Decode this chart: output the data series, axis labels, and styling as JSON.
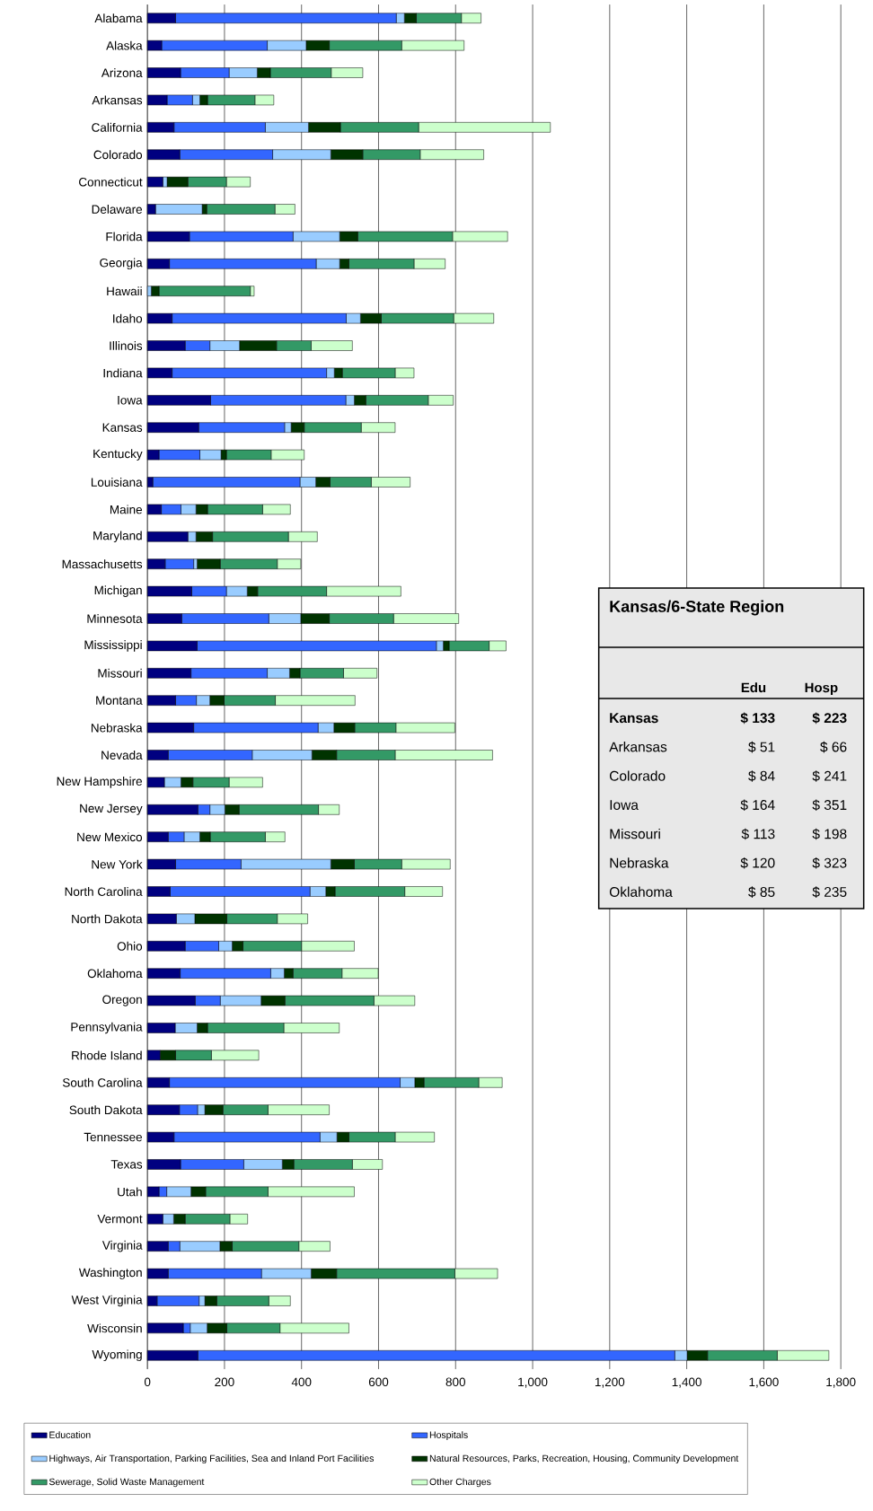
{
  "chart_data": [
    {
      "type": "bar",
      "orientation": "horizontal",
      "stacked": true,
      "categories": [
        "Alabama",
        "Alaska",
        "Arizona",
        "Arkansas",
        "California",
        "Colorado",
        "Connecticut",
        "Delaware",
        "Florida",
        "Georgia",
        "Hawaii",
        "Idaho",
        "Illinois",
        "Indiana",
        "Iowa",
        "Kansas",
        "Kentucky",
        "Louisiana",
        "Maine",
        "Maryland",
        "Massachusetts",
        "Michigan",
        "Minnesota",
        "Mississippi",
        "Missouri",
        "Montana",
        "Nebraska",
        "Nevada",
        "New Hampshire",
        "New Jersey",
        "New Mexico",
        "New York",
        "North Carolina",
        "North Dakota",
        "Ohio",
        "Oklahoma",
        "Oregon",
        "Pennsylvania",
        "Rhode Island",
        "South Carolina",
        "South Dakota",
        "Tennessee",
        "Texas",
        "Utah",
        "Vermont",
        "Virginia",
        "Washington",
        "West Virginia",
        "Wisconsin",
        "Wyoming"
      ],
      "series": [
        {
          "name": "Education",
          "color": "#000080",
          "values": [
            73,
            37,
            86,
            51,
            69,
            84,
            40,
            21,
            109,
            57,
            0,
            64,
            98,
            64,
            164,
            133,
            30,
            14,
            36,
            105,
            46,
            115,
            89,
            129,
            113,
            73,
            120,
            54,
            44,
            131,
            54,
            73,
            59,
            75,
            98,
            85,
            124,
            72,
            33,
            57,
            83,
            69,
            86,
            30,
            40,
            54,
            54,
            25,
            93,
            131
          ]
        },
        {
          "name": "Hospitals",
          "color": "#3366ff",
          "values": [
            573,
            274,
            126,
            66,
            237,
            241,
            0,
            0,
            269,
            381,
            0,
            452,
            64,
            401,
            351,
            223,
            106,
            382,
            51,
            0,
            74,
            90,
            226,
            621,
            198,
            54,
            323,
            218,
            0,
            31,
            41,
            170,
            363,
            0,
            87,
            235,
            65,
            0,
            0,
            599,
            47,
            379,
            164,
            20,
            0,
            30,
            242,
            109,
            18,
            1238
          ]
        },
        {
          "name": "Highways, Air Transportation, Parking Facilities, Sea and Inland Port Facilities",
          "color": "#99ccff",
          "values": [
            21,
            101,
            73,
            19,
            112,
            151,
            11,
            121,
            121,
            61,
            10,
            37,
            77,
            20,
            22,
            17,
            55,
            41,
            39,
            21,
            9,
            54,
            83,
            18,
            58,
            35,
            41,
            155,
            43,
            39,
            41,
            233,
            41,
            48,
            35,
            35,
            106,
            57,
            0,
            38,
            19,
            44,
            100,
            63,
            28,
            104,
            129,
            15,
            44,
            32
          ]
        },
        {
          "name": "Natural Resources, Parks, Recreation, Housing, Community Development",
          "color": "#003300",
          "values": [
            31,
            60,
            34,
            20,
            83,
            83,
            54,
            12,
            47,
            24,
            20,
            54,
            96,
            21,
            30,
            34,
            14,
            37,
            30,
            43,
            60,
            27,
            74,
            15,
            27,
            37,
            54,
            64,
            31,
            37,
            27,
            61,
            24,
            83,
            28,
            23,
            62,
            27,
            40,
            24,
            47,
            31,
            30,
            38,
            30,
            32,
            66,
            31,
            51,
            53
          ]
        },
        {
          "name": "Sewerage, Solid Waste Management",
          "color": "#339966",
          "values": [
            117,
            188,
            158,
            123,
            203,
            149,
            100,
            177,
            246,
            169,
            237,
            188,
            90,
            137,
            162,
            148,
            116,
            107,
            143,
            197,
            148,
            179,
            167,
            104,
            113,
            133,
            107,
            152,
            94,
            206,
            143,
            123,
            181,
            131,
            152,
            127,
            231,
            198,
            93,
            142,
            117,
            120,
            152,
            162,
            116,
            173,
            307,
            135,
            138,
            181
          ]
        },
        {
          "name": "Other Charges",
          "color": "#ccffcc",
          "values": [
            51,
            162,
            82,
            49,
            342,
            165,
            62,
            52,
            143,
            81,
            10,
            104,
            107,
            49,
            65,
            88,
            86,
            101,
            72,
            75,
            61,
            193,
            169,
            44,
            87,
            207,
            153,
            253,
            87,
            54,
            51,
            126,
            98,
            79,
            137,
            94,
            106,
            144,
            123,
            61,
            159,
            102,
            78,
            224,
            46,
            81,
            111,
            56,
            179,
            134
          ]
        }
      ],
      "xlim": [
        0,
        1800
      ],
      "xticks": [
        0,
        200,
        400,
        600,
        800,
        {
          "value": 1000,
          "label": "1,000"
        },
        {
          "value": 1200,
          "label": "1,200"
        },
        {
          "value": 1400,
          "label": "1,400"
        },
        {
          "value": 1600,
          "label": "1,600"
        },
        {
          "value": 1800,
          "label": "1,800"
        }
      ],
      "grid": "x",
      "legend": "bottom"
    },
    {
      "type": "other",
      "title": "Kansas/6-State Region",
      "categories": [
        "Kansas",
        "Arkansas",
        "Colorado",
        "Iowa",
        "Missouri",
        "Nebraska",
        "Oklahoma"
      ],
      "series": [
        {
          "name": "Edu",
          "values": [
            133,
            51,
            84,
            164,
            113,
            120,
            85
          ],
          "value_labels": [
            "$ 133",
            "$ 51",
            "$ 84",
            "$ 164",
            "$ 113",
            "$ 120",
            "$ 85"
          ]
        },
        {
          "name": "Hosp",
          "values": [
            223,
            66,
            241,
            351,
            198,
            323,
            235
          ],
          "value_labels": [
            "$ 223",
            "$ 66",
            "$ 241",
            "$ 351",
            "$ 198",
            "$ 323",
            "$ 235"
          ]
        }
      ]
    }
  ]
}
